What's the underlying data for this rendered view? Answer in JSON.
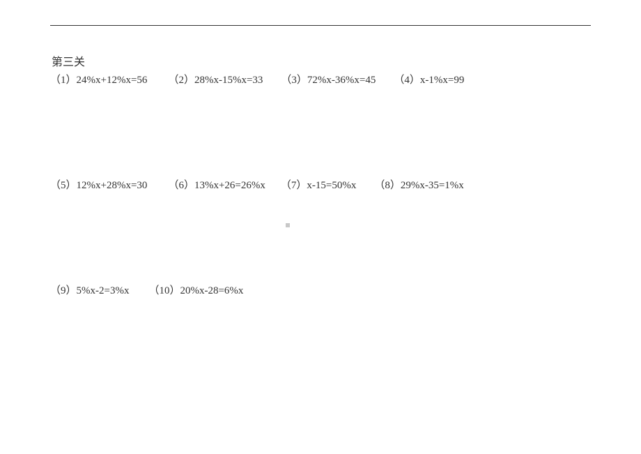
{
  "document": {
    "background_color": "#ffffff",
    "text_color": "#333333",
    "divider_color": "#333333",
    "font_family": "SimSun",
    "title_fontsize": 16,
    "problem_fontsize": 15,
    "section_title": "第三关",
    "rows": [
      {
        "items": [
          {
            "num": "（1）",
            "expr": "24%x+12%x=56"
          },
          {
            "num": "（2）",
            "expr": "28%x-15%x=33"
          },
          {
            "num": "（3）",
            "expr": "72%x-36%x=45"
          },
          {
            "num": "（4）",
            "expr": "x-1%x=99"
          }
        ]
      },
      {
        "items": [
          {
            "num": "（5）",
            "expr": "12%x+28%x=30"
          },
          {
            "num": "（6）",
            "expr": "13%x+26=26%x"
          },
          {
            "num": "（7）",
            "expr": "x-15=50%x"
          },
          {
            "num": "（8）",
            "expr": "29%x-35=1%x"
          }
        ]
      },
      {
        "items": [
          {
            "num": "（9）",
            "expr": "5%x-2=3%x"
          },
          {
            "num": "（10）",
            "expr": "20%x-28=6%x"
          }
        ]
      }
    ],
    "center_marker_color": "#c8c8c8"
  }
}
